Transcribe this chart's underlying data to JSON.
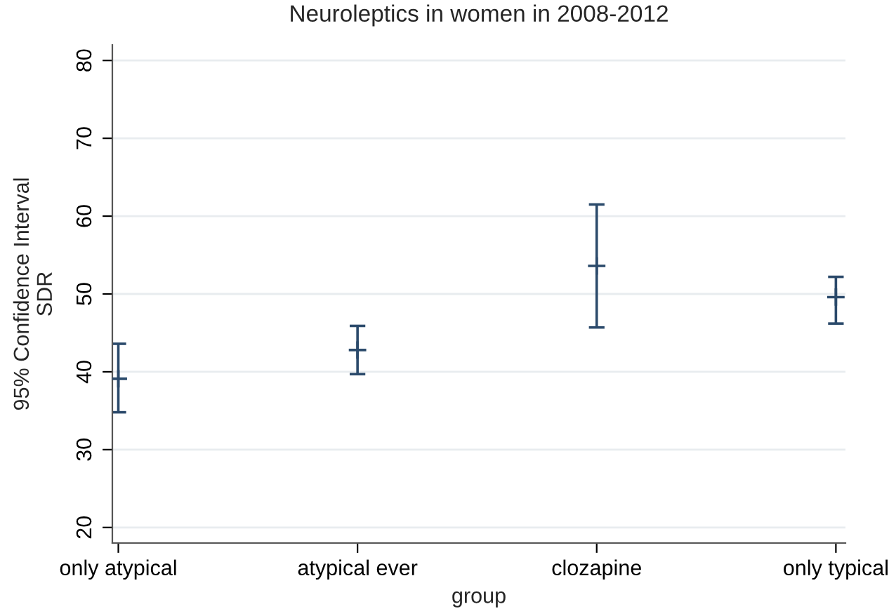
{
  "chart_data": {
    "type": "scatter",
    "title": "Neuroleptics in women in 2008-2012",
    "xlabel": "group",
    "ylabel": "95% Confidence Interval\nSDR",
    "categories": [
      "only atypical",
      "atypical ever",
      "clozapine",
      "only typical"
    ],
    "series": [
      {
        "color": "#2b4a6b",
        "values": [
          39.1,
          42.8,
          53.6,
          49.6
        ],
        "errors": [
          [
            34.8,
            43.6
          ],
          [
            39.7,
            45.9
          ],
          [
            45.7,
            61.5
          ],
          [
            46.2,
            52.2
          ]
        ]
      }
    ],
    "ylim": [
      18,
      82
    ],
    "yticks": [
      20,
      30,
      40,
      50,
      60,
      70,
      80
    ],
    "grid": "y",
    "marker": "cross",
    "legend": false
  }
}
